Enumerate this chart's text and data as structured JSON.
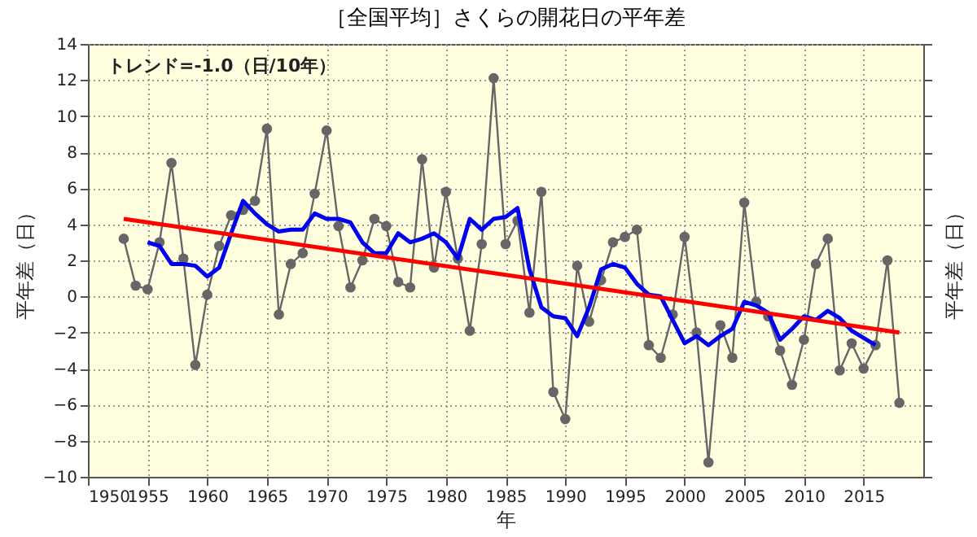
{
  "chart_data": {
    "type": "line",
    "title": "［全国平均］さくらの開花日の平年差",
    "xlabel": "年",
    "ylabel": "平年差（日）",
    "y2label": "平年差（日）",
    "annotations": [
      "トレンド=-1.0（日/10年）"
    ],
    "xlim": [
      1950,
      2020
    ],
    "xticks": [
      1950,
      1955,
      1960,
      1965,
      1970,
      1975,
      1980,
      1985,
      1990,
      1995,
      2000,
      2005,
      2010,
      2015
    ],
    "ylim": [
      -10,
      14
    ],
    "yticks": [
      -10,
      -8,
      -6,
      -4,
      -2,
      0,
      2,
      4,
      6,
      8,
      10,
      12,
      14
    ],
    "grid": true,
    "line_style": "solid",
    "series": [
      {
        "color": "#666666",
        "marker": "circle",
        "x": [
          1953,
          1954,
          1955,
          1956,
          1957,
          1958,
          1959,
          1960,
          1961,
          1962,
          1963,
          1964,
          1965,
          1966,
          1967,
          1968,
          1969,
          1970,
          1971,
          1972,
          1973,
          1974,
          1975,
          1976,
          1977,
          1978,
          1979,
          1980,
          1981,
          1982,
          1983,
          1984,
          1985,
          1986,
          1987,
          1988,
          1989,
          1990,
          1991,
          1992,
          1993,
          1994,
          1995,
          1996,
          1997,
          1998,
          1999,
          2000,
          2001,
          2002,
          2003,
          2004,
          2005,
          2006,
          2007,
          2008,
          2009,
          2010,
          2011,
          2012,
          2013,
          2014,
          2015,
          2016,
          2017,
          2018
        ],
        "values": [
          3.2,
          0.6,
          0.4,
          3.0,
          7.4,
          2.1,
          -3.8,
          0.1,
          2.8,
          4.5,
          4.8,
          5.3,
          9.3,
          -1.0,
          1.8,
          2.4,
          5.7,
          9.2,
          3.9,
          0.5,
          2.0,
          4.3,
          3.9,
          0.8,
          0.5,
          7.6,
          1.6,
          5.8,
          2.1,
          -1.9,
          2.9,
          12.1,
          2.9,
          4.2,
          -0.9,
          5.8,
          -5.3,
          -6.8,
          1.7,
          -1.4,
          0.9,
          3.0,
          3.3,
          3.7,
          -2.7,
          -3.4,
          -1.0,
          3.3,
          -2.0,
          -9.2,
          -1.6,
          -3.4,
          5.2,
          -0.3,
          -1.1,
          -3.0,
          -4.9,
          -2.4,
          1.8,
          3.2,
          -4.1,
          -2.6,
          -4.0,
          -2.7,
          2.0,
          -5.9
        ]
      },
      {
        "color": "#0000ee",
        "marker": "none",
        "x": [
          1955,
          1956,
          1957,
          1958,
          1959,
          1960,
          1961,
          1962,
          1963,
          1964,
          1965,
          1966,
          1967,
          1968,
          1969,
          1970,
          1971,
          1972,
          1973,
          1974,
          1975,
          1976,
          1977,
          1978,
          1979,
          1980,
          1981,
          1982,
          1983,
          1984,
          1985,
          1986,
          1987,
          1988,
          1989,
          1990,
          1991,
          1992,
          1993,
          1994,
          1995,
          1996,
          1997,
          1998,
          1999,
          2000,
          2001,
          2002,
          2003,
          2004,
          2005,
          2006,
          2007,
          2008,
          2009,
          2010,
          2011,
          2012,
          2013,
          2014,
          2015,
          2016
        ],
        "values": [
          3.0,
          2.8,
          1.8,
          1.8,
          1.7,
          1.1,
          1.6,
          3.5,
          5.3,
          4.6,
          4.0,
          3.6,
          3.7,
          3.7,
          4.6,
          4.3,
          4.3,
          4.1,
          3.0,
          2.4,
          2.4,
          3.5,
          3.0,
          3.2,
          3.5,
          3.0,
          2.1,
          4.3,
          3.7,
          4.3,
          4.4,
          4.9,
          1.5,
          -0.6,
          -1.1,
          -1.2,
          -2.2,
          -0.6,
          1.5,
          1.8,
          1.6,
          0.7,
          0.1,
          0.0,
          -1.3,
          -2.6,
          -2.2,
          -2.7,
          -2.2,
          -1.8,
          -0.3,
          -0.5,
          -0.9,
          -2.4,
          -1.8,
          -1.1,
          -1.3,
          -0.8,
          -1.2,
          -1.9,
          -2.3,
          -2.7
        ]
      },
      {
        "color": "#ff0000",
        "marker": "none",
        "x": [
          1953,
          2018
        ],
        "values": [
          4.3,
          -2.0
        ]
      }
    ]
  }
}
